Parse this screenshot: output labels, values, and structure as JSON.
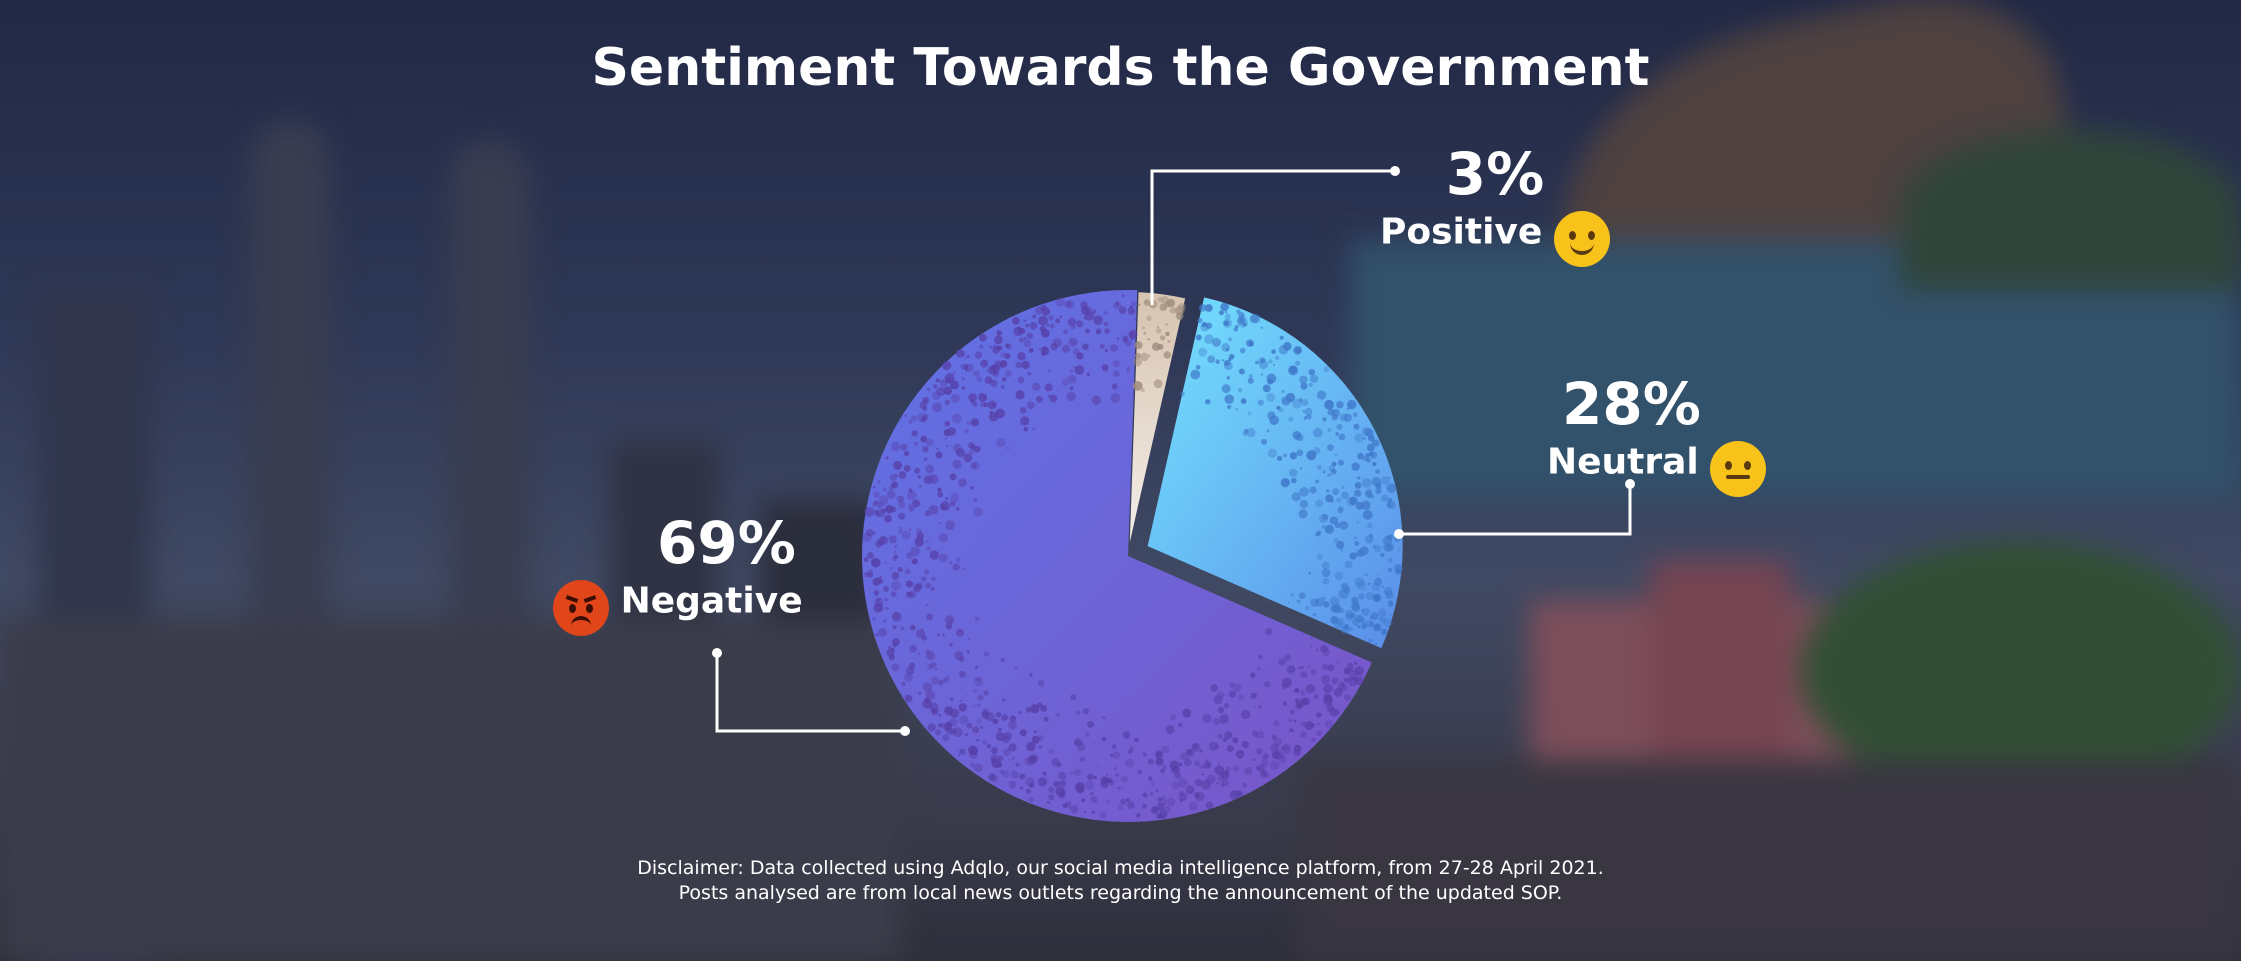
{
  "title": "Sentiment Towards the Government",
  "chart_data": {
    "type": "pie",
    "title": "Sentiment Towards the Government",
    "slices": [
      {
        "label": "Positive",
        "value": 3,
        "display": "3%",
        "color": "#e6d6c8",
        "emoji": "smiling-face-icon",
        "emoji_color": "#f7c21a"
      },
      {
        "label": "Neutral",
        "value": 28,
        "display": "28%",
        "color": "#6fd0f5",
        "emoji": "neutral-face-icon",
        "emoji_color": "#f7c21a"
      },
      {
        "label": "Negative",
        "value": 69,
        "display": "69%",
        "color": "#6b6fe0",
        "emoji": "angry-face-icon",
        "emoji_color": "#e0461a"
      }
    ]
  },
  "labels": {
    "positive": {
      "pct": "3%",
      "name": "Positive"
    },
    "neutral": {
      "pct": "28%",
      "name": "Neutral"
    },
    "negative": {
      "pct": "69%",
      "name": "Negative"
    }
  },
  "disclaimer": {
    "line1": "Disclaimer: Data collected using Adqlo, our social media intelligence platform, from 27-28 April 2021.",
    "line2": "Posts analysed are from local news outlets regarding the announcement of the updated SOP."
  }
}
